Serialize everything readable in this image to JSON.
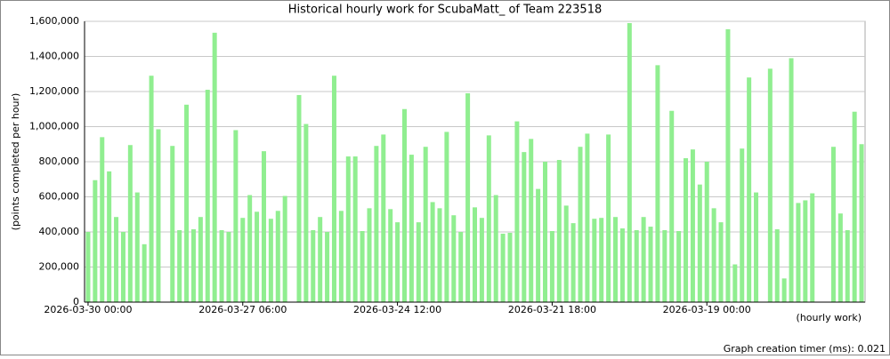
{
  "chart_data": {
    "type": "bar",
    "title": "Historical hourly work for ScubaMatt_ of Team 223518",
    "y_label": "(points completed per hour)",
    "x_label": "(hourly work)",
    "footer": "Graph creation timer (ms): 0.021",
    "color": "#90ee90",
    "grid": true,
    "ylim": [
      0,
      1600000
    ],
    "yticks": [
      0,
      {
        "value": 200000,
        "label": "200,000"
      },
      {
        "value": 400000,
        "label": "400,000"
      },
      {
        "value": 600000,
        "label": "600,000"
      },
      {
        "value": 800000,
        "label": "800,000"
      },
      {
        "value": 1000000,
        "label": "1,000,000"
      },
      {
        "value": 1200000,
        "label": "1,200,000"
      },
      {
        "value": 1400000,
        "label": "1,400,000"
      },
      {
        "value": 1600000,
        "label": "1,600,000"
      }
    ],
    "categories": [
      "2026-03-30 00:00",
      null,
      null,
      null,
      null,
      null,
      null,
      null,
      null,
      null,
      null,
      null,
      null,
      null,
      null,
      null,
      null,
      null,
      null,
      null,
      null,
      null,
      "2026-03-27 06:00",
      null,
      null,
      null,
      null,
      null,
      null,
      null,
      null,
      null,
      null,
      null,
      null,
      null,
      null,
      null,
      null,
      null,
      null,
      null,
      null,
      null,
      "2026-03-24 12:00",
      null,
      null,
      null,
      null,
      null,
      null,
      null,
      null,
      null,
      null,
      null,
      null,
      null,
      null,
      null,
      null,
      null,
      null,
      null,
      null,
      null,
      "2026-03-21 18:00",
      null,
      null,
      null,
      null,
      null,
      null,
      null,
      null,
      null,
      null,
      null,
      null,
      null,
      null,
      null,
      null,
      null,
      null,
      null,
      null,
      null,
      "2026-03-19 00:00",
      null,
      null,
      null,
      null,
      null,
      null,
      null,
      null,
      null,
      null,
      null,
      null,
      null,
      null,
      null,
      null,
      null,
      null,
      null,
      null,
      null,
      null
    ],
    "values": [
      400000,
      695000,
      940000,
      745000,
      485000,
      400000,
      895000,
      625000,
      330000,
      1290000,
      985000,
      null,
      890000,
      410000,
      1125000,
      415000,
      485000,
      1210000,
      1535000,
      410000,
      400000,
      980000,
      480000,
      610000,
      515000,
      860000,
      475000,
      520000,
      605000,
      null,
      1180000,
      1015000,
      410000,
      485000,
      400000,
      1290000,
      520000,
      830000,
      830000,
      405000,
      535000,
      890000,
      955000,
      530000,
      455000,
      1100000,
      840000,
      455000,
      885000,
      570000,
      535000,
      970000,
      495000,
      400000,
      1190000,
      540000,
      480000,
      950000,
      610000,
      390000,
      395000,
      1030000,
      855000,
      930000,
      645000,
      800000,
      405000,
      810000,
      550000,
      450000,
      885000,
      960000,
      475000,
      480000,
      955000,
      485000,
      420000,
      1590000,
      410000,
      485000,
      430000,
      1350000,
      410000,
      1090000,
      405000,
      820000,
      870000,
      670000,
      800000,
      535000,
      455000,
      1555000,
      215000,
      875000,
      1280000,
      625000,
      null,
      1330000,
      415000,
      135000,
      1390000,
      565000,
      580000,
      620000,
      null,
      null,
      885000,
      505000,
      410000,
      1085000,
      900000
    ]
  }
}
